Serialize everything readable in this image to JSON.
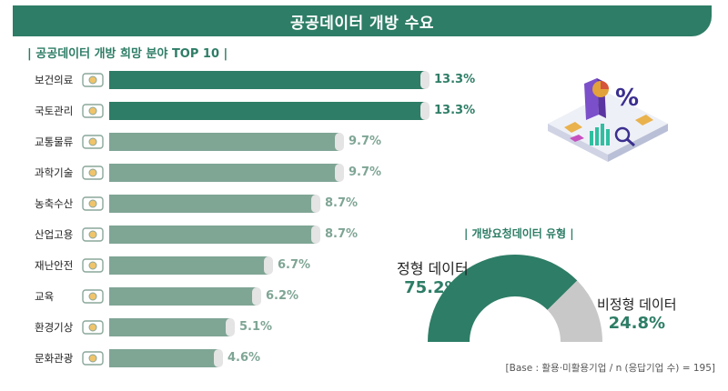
{
  "header": {
    "title": "공공데이터 개방 수요"
  },
  "colors": {
    "primary": "#2e7d66",
    "secondary": "#7fa595",
    "grey": "#c8c8c8",
    "bar_shadow": "#e4e4e4"
  },
  "chart_data": [
    {
      "type": "bar",
      "title": "| 공공데이터 개방 희망 분야 TOP 10 |",
      "categories": [
        "보건의료",
        "국토관리",
        "교통물류",
        "과학기술",
        "농축수산",
        "산업고용",
        "재난안전",
        "교육",
        "환경기상",
        "문화관광"
      ],
      "icons": [
        "doctor-icon",
        "land-map-icon",
        "truck-icon",
        "science-icon",
        "livestock-icon",
        "handshake-icon",
        "alarm-icon",
        "education-icon",
        "weather-icon",
        "culture-icon"
      ],
      "values": [
        13.3,
        13.3,
        9.7,
        9.7,
        8.7,
        8.7,
        6.7,
        6.2,
        5.1,
        4.6
      ],
      "value_labels": [
        "13.3%",
        "13.3%",
        "9.7%",
        "9.7%",
        "8.7%",
        "8.7%",
        "6.7%",
        "6.2%",
        "5.1%",
        "4.6%"
      ],
      "highlighted": [
        true,
        true,
        false,
        false,
        false,
        false,
        false,
        false,
        false,
        false
      ],
      "xlim": [
        0,
        13.3
      ]
    },
    {
      "type": "pie",
      "style": "half-donut",
      "title": "| 개방요청데이터 유형 |",
      "categories": [
        "정형 데이터",
        "비정형 데이터"
      ],
      "values": [
        75.2,
        24.8
      ],
      "value_labels": [
        "75.2%",
        "24.8%"
      ]
    }
  ],
  "base_note": "[Base : 활용·미활용기업 / n (응답기업 수) = 195]"
}
